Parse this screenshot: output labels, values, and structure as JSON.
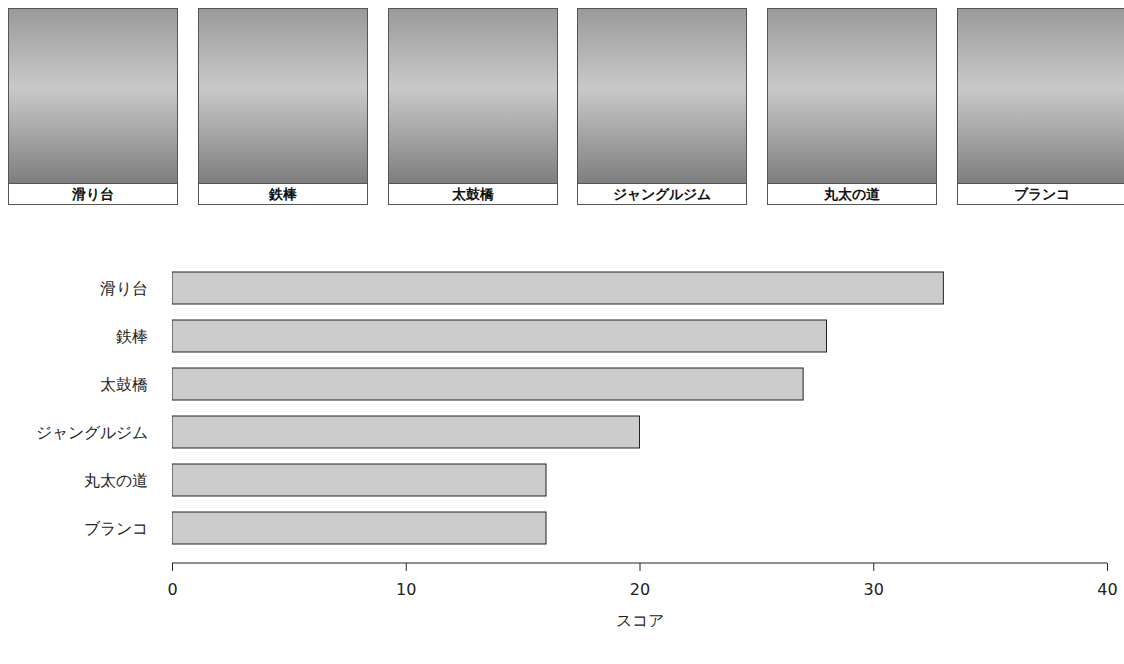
{
  "chart_data": {
    "type": "bar",
    "orientation": "horizontal",
    "categories": [
      "滑り台",
      "鉄棒",
      "太鼓橋",
      "ジャングルジム",
      "丸太の道",
      "ブランコ"
    ],
    "values": [
      33,
      28,
      27,
      20,
      16,
      16
    ],
    "color": "#cccccc",
    "xlabel": "スコア",
    "xlim": [
      0,
      40
    ],
    "xticks": [
      0,
      10,
      20,
      30,
      40
    ],
    "grid": false
  },
  "photos": {
    "captions": [
      "滑り台",
      "鉄棒",
      "太鼓橋",
      "ジャングルジム",
      "丸太の道",
      "ブランコ"
    ]
  }
}
